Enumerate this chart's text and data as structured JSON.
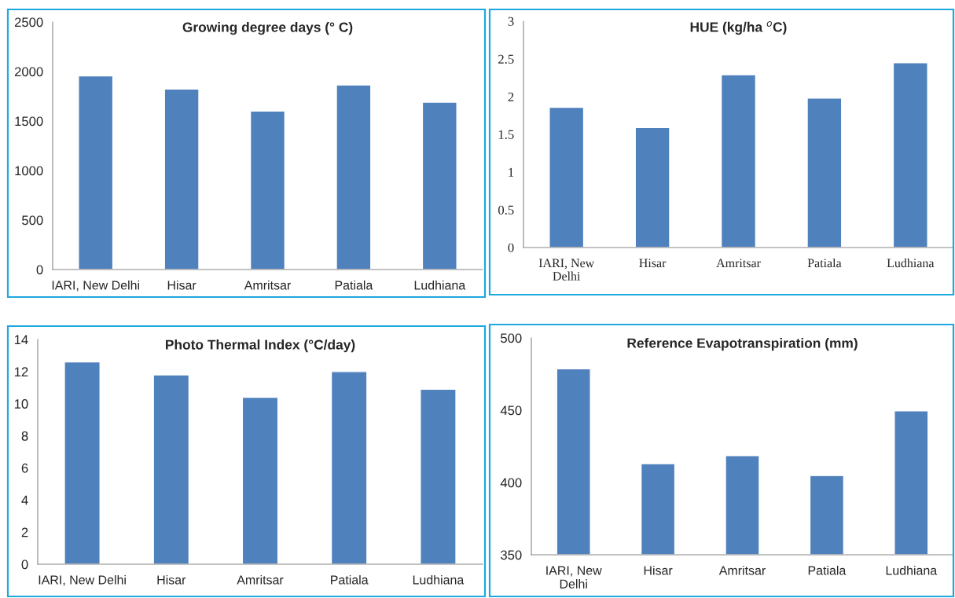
{
  "chart_data": [
    {
      "type": "bar",
      "title": "Growing degree days (° C)",
      "categories": [
        "IARI, New Delhi",
        "Hisar",
        "Amritsar",
        "Patiala",
        "Ludhiana"
      ],
      "values": [
        1955,
        1823,
        1600,
        1864,
        1691
      ],
      "color": "#4f81bd",
      "ylim": [
        0,
        2500
      ],
      "yticks": [
        0,
        500,
        1000,
        1500,
        2000,
        2500
      ],
      "grid": false,
      "legend": false
    },
    {
      "type": "bar",
      "title": "HUE (kg/ha $^{o}$C)",
      "categories": [
        "IARI, New\nDelhi",
        "Hisar",
        "Amritsar",
        "Patiala",
        "Ludhiana"
      ],
      "values": [
        1.86,
        1.59,
        2.29,
        1.98,
        2.45
      ],
      "color": "#4f81bd",
      "ylim": [
        0,
        3
      ],
      "yticks": [
        0,
        0.5,
        1,
        1.5,
        2,
        2.5,
        3
      ],
      "grid": false,
      "legend": false
    },
    {
      "type": "bar",
      "title": "Photo Thermal Index (°C/day)",
      "categories": [
        "IARI, New Delhi",
        "Hisar",
        "Amritsar",
        "Patiala",
        "Ludhiana"
      ],
      "values": [
        12.6,
        11.8,
        10.4,
        12.0,
        10.9
      ],
      "color": "#4f81bd",
      "ylim": [
        0,
        14
      ],
      "yticks": [
        0,
        2,
        4,
        6,
        8,
        10,
        12,
        14
      ],
      "grid": false,
      "legend": false
    },
    {
      "type": "bar",
      "title": "Reference Evapotranspiration (mm)",
      "categories": [
        "IARI, New\nDelhi",
        "Hisar",
        "Amritsar",
        "Patiala",
        "Ludhiana"
      ],
      "values": [
        478.6,
        413,
        418.6,
        404.8,
        449.5
      ],
      "color": "#4f81bd",
      "ylim": [
        350,
        500
      ],
      "yticks": [
        350,
        400,
        450,
        500
      ],
      "grid": false,
      "legend": false
    }
  ]
}
